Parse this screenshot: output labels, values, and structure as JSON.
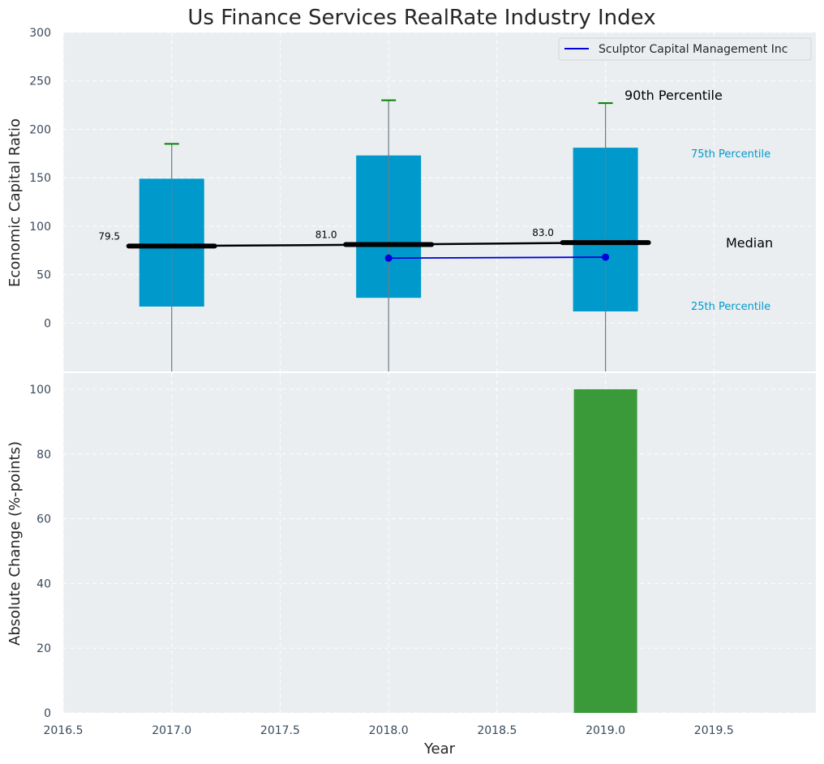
{
  "chart_data": [
    {
      "type": "box",
      "title": "Us Finance Services RealRate Industry Index",
      "ylabel": "Economic Capital Ratio",
      "ylim": [
        -50,
        300
      ],
      "yticks": [
        0,
        50,
        100,
        150,
        200,
        250,
        300
      ],
      "xlim": [
        2016.5,
        2019.97
      ],
      "boxes": [
        {
          "x": 2017,
          "p25": 17,
          "p75": 149,
          "p90": 185,
          "median": 79.5,
          "median_label": "79.5"
        },
        {
          "x": 2018,
          "p25": 26,
          "p75": 173,
          "p90": 230,
          "median": 81.0,
          "median_label": "81.0"
        },
        {
          "x": 2019,
          "p25": 12,
          "p75": 181,
          "p90": 227,
          "median": 83.0,
          "median_label": "83.0"
        }
      ],
      "median_line": {
        "x": [
          2017,
          2018,
          2019
        ],
        "y": [
          79.5,
          81.0,
          83.0
        ]
      },
      "series": [
        {
          "name": "Sculptor Capital Management Inc",
          "x": [
            2018,
            2019
          ],
          "y": [
            67,
            68
          ],
          "color": "#0000dd"
        }
      ],
      "legend": {
        "position": "top-right",
        "entries": [
          "Sculptor Capital Management Inc"
        ]
      },
      "annotations": {
        "p90": "90th Percentile",
        "p75": "75th Percentile",
        "median": "Median",
        "p25": "25th Percentile"
      },
      "colors": {
        "box": "#0099cc",
        "whisker_cap": "#008000",
        "median": "#000000",
        "panel_bg": "#eaeef0",
        "annotation_accent": "#0099cc"
      }
    },
    {
      "type": "bar",
      "xlabel": "Year",
      "ylabel": "Absolute Change (%-points)",
      "ylim": [
        0,
        105
      ],
      "yticks": [
        0,
        20,
        40,
        60,
        80,
        100
      ],
      "xlim": [
        2016.5,
        2019.97
      ],
      "xticks": [
        "2016.5",
        "2017.0",
        "2017.5",
        "2018.0",
        "2018.5",
        "2019.0",
        "2019.5"
      ],
      "bars": [
        {
          "x": 2019,
          "value": 100
        }
      ],
      "colors": {
        "bar": "#3a9a3a"
      }
    }
  ]
}
